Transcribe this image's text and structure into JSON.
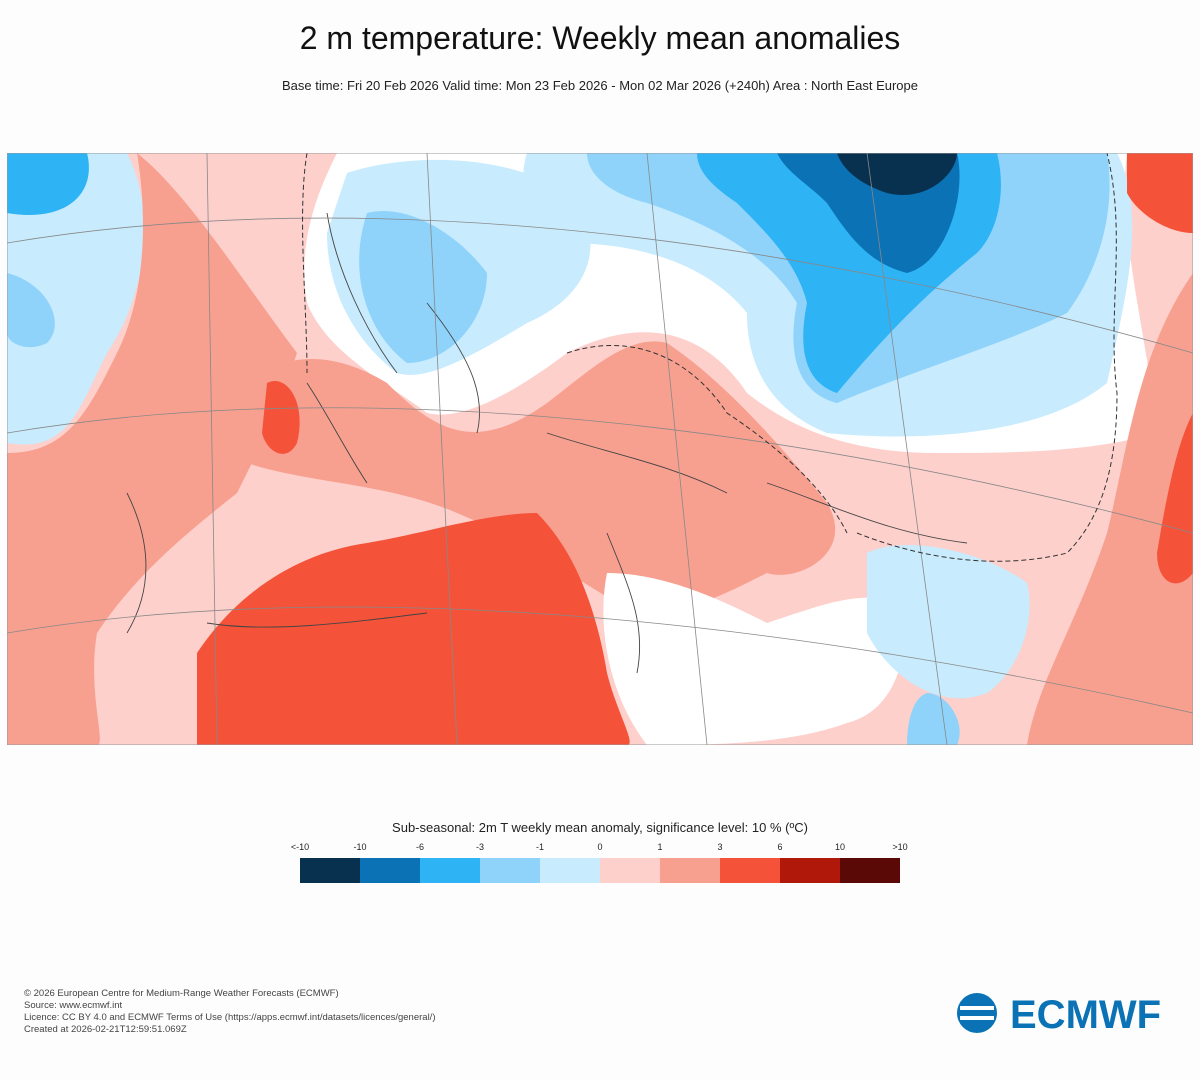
{
  "header": {
    "title": "2 m temperature: Weekly mean anomalies",
    "subtitle": "Base time: Fri 20 Feb 2026 Valid time: Mon 23 Feb 2026 - Mon 02 Mar 2026 (+240h) Area : North East Europe"
  },
  "legend": {
    "title": "Sub-seasonal: 2m T weekly mean anomaly, significance level: 10 % (ºC)",
    "labels": [
      "<-10",
      "-10",
      "-6",
      "-3",
      "-1",
      "0",
      "1",
      "3",
      "6",
      "10",
      ">10"
    ],
    "colors": [
      "#08304f",
      "#0a72b5",
      "#2eb3f5",
      "#8fd3fb",
      "#c8ebfd",
      "#fdd0cc",
      "#f8a08f",
      "#f4533a",
      "#b01909",
      "#5a0906"
    ]
  },
  "footer": {
    "lines": [
      "© 2026 European Centre for Medium-Range Weather Forecasts (ECMWF)",
      "Source: www.ecmwf.int",
      "Licence: CC BY 4.0 and ECMWF Terms of Use (https://apps.ecmwf.int/datasets/licences/general/)",
      "Created at 2026-02-21T12:59:51.069Z"
    ],
    "logo": "ECMWF"
  }
}
